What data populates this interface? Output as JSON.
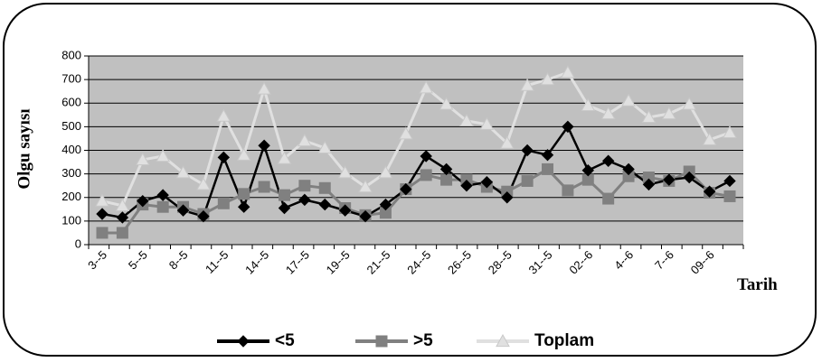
{
  "chart_data": {
    "type": "line",
    "xlabel": "Tarih",
    "ylabel": "Olgu sayısı",
    "ylim": [
      0,
      800
    ],
    "yticks": [
      0,
      100,
      200,
      300,
      400,
      500,
      600,
      700,
      800
    ],
    "grid": true,
    "legend_position": "bottom",
    "plot_background": "#c0c0c0",
    "tick_labels": [
      "3--5",
      "5--5",
      "8--5",
      "11--5",
      "14--5",
      "17--5",
      "19--5",
      "21--5",
      "24--5",
      "26--5",
      "28--5",
      "31--5",
      "02--6",
      "4--6",
      "7--6",
      "09--6"
    ],
    "tick_every": 2,
    "point_count": 32,
    "series": [
      {
        "name": "<5",
        "color": "#000000",
        "marker": "diamond",
        "values": [
          130,
          115,
          185,
          210,
          145,
          120,
          370,
          160,
          420,
          155,
          190,
          170,
          145,
          120,
          170,
          235,
          375,
          320,
          250,
          265,
          200,
          400,
          380,
          500,
          315,
          355,
          320,
          255,
          275,
          285,
          225,
          270
        ]
      },
      {
        "name": ">5",
        "color": "#808080",
        "marker": "square",
        "values": [
          50,
          50,
          170,
          160,
          160,
          130,
          175,
          215,
          245,
          210,
          250,
          240,
          155,
          125,
          135,
          235,
          295,
          275,
          275,
          245,
          225,
          270,
          320,
          230,
          275,
          195,
          290,
          285,
          270,
          310,
          220,
          205
        ]
      },
      {
        "name": "Toplam",
        "color": "#e0e0e0",
        "marker": "triangle",
        "values": [
          185,
          165,
          360,
          375,
          305,
          255,
          545,
          380,
          660,
          365,
          440,
          410,
          305,
          245,
          305,
          470,
          665,
          595,
          525,
          510,
          430,
          675,
          700,
          730,
          590,
          555,
          610,
          540,
          555,
          595,
          445,
          475
        ]
      }
    ]
  }
}
